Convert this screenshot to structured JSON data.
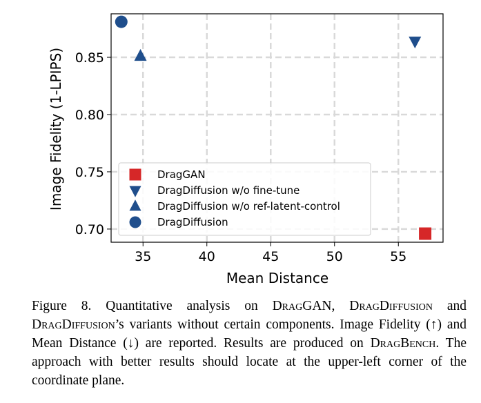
{
  "chart_data": {
    "type": "scatter",
    "xlabel": "Mean Distance",
    "ylabel": "Image Fidelity (1-LPIPS)",
    "xlim": [
      32.5,
      58.5
    ],
    "ylim": [
      0.6885,
      0.888
    ],
    "xticks": [
      35,
      40,
      45,
      50,
      55
    ],
    "yticks": [
      0.7,
      0.75,
      0.8,
      0.85
    ],
    "xtick_labels": [
      "35",
      "40",
      "45",
      "50",
      "55"
    ],
    "ytick_labels": [
      "0.70",
      "0.75",
      "0.80",
      "0.85"
    ],
    "grid": true,
    "grid_style": "dashed",
    "legend_position": "lower-left",
    "series": [
      {
        "name": "DragGAN",
        "marker": "square",
        "color": "#d62728",
        "x": [
          57.1
        ],
        "y": [
          0.696
        ]
      },
      {
        "name": "DragDiffusion w/o fine-tune",
        "marker": "triangle-down",
        "color": "#1f4e8c",
        "x": [
          56.3
        ],
        "y": [
          0.864
        ]
      },
      {
        "name": "DragDiffusion w/o ref-latent-control",
        "marker": "triangle-up",
        "color": "#1f4e8c",
        "x": [
          34.8
        ],
        "y": [
          0.851
        ]
      },
      {
        "name": "DragDiffusion",
        "marker": "circle",
        "color": "#1f4e8c",
        "x": [
          33.3
        ],
        "y": [
          0.881
        ]
      }
    ]
  },
  "caption": {
    "figure_label": "Figure 8.",
    "t1": " Quantitative analysis on ",
    "drag_gan": "DragGAN",
    "t2": ", ",
    "drag_diffusion": "DragDiffusion",
    "t3": " and ",
    "drag_diffusion_2": "DragDiffusion",
    "t4": "’s variants without certain components. Image Fidelity (↑) and Mean Distance (↓) are reported.  Results are produced on ",
    "drag_bench": "DragBench",
    "t5": ". The approach with better results should locate at the upper-left corner of the coordinate plane."
  }
}
